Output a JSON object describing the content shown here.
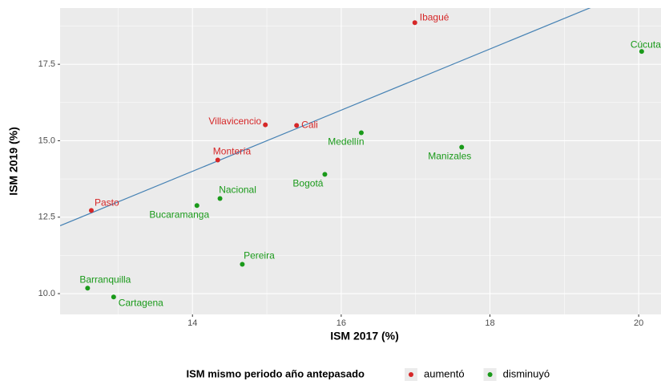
{
  "chart_data": {
    "type": "scatter",
    "x_label": "ISM 2017 (%)",
    "y_label": "ISM 2019 (%)",
    "legend_title": "ISM mismo periodo año antepasado",
    "legend": "bottom",
    "grid": true,
    "xlim": [
      12.22,
      20.3
    ],
    "ylim": [
      9.32,
      19.34
    ],
    "xticks": [
      14,
      16,
      18,
      20
    ],
    "yticks": [
      {
        "value": 10,
        "label": "10.0"
      },
      12.5,
      {
        "value": 15,
        "label": "15.0"
      },
      17.5
    ],
    "reference_line": {
      "slope": 1,
      "intercept": 0,
      "color": "#4682b4"
    },
    "series": [
      {
        "name": "aumentó",
        "color": "#d62728",
        "labels": [
          "Ibagué",
          "Villavicencio",
          "Cali",
          "Montería",
          "Pasto"
        ],
        "x": [
          16.99,
          14.98,
          15.4,
          14.34,
          12.64
        ],
        "values": [
          18.86,
          15.52,
          15.5,
          14.37,
          12.72
        ]
      },
      {
        "name": "disminuyó",
        "color": "#1a9a1a",
        "labels": [
          "Cúcuta",
          "Medellín",
          "Manizales",
          "Bogotá",
          "Nacional",
          "Bucaramanga",
          "Pereira",
          "Barranquilla",
          "Cartagena"
        ],
        "x": [
          20.04,
          16.27,
          17.62,
          15.78,
          14.37,
          14.06,
          14.67,
          12.59,
          12.94
        ],
        "values": [
          17.92,
          15.26,
          14.79,
          13.9,
          13.11,
          12.88,
          10.96,
          10.18,
          9.89
        ]
      }
    ]
  }
}
